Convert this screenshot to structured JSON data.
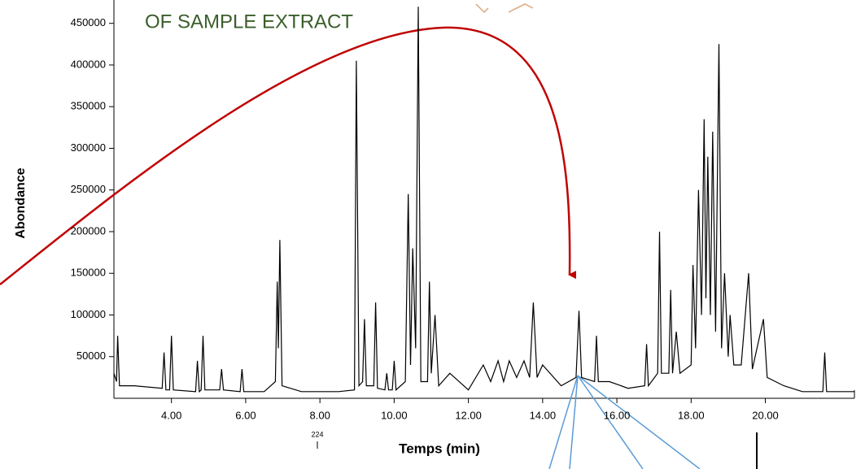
{
  "chart_data": {
    "type": "line",
    "title": "OF SAMPLE EXTRACT",
    "y_label": "Abondance",
    "x_label": "Temps (min)",
    "annotations": [
      "224"
    ],
    "color": "#000000",
    "x": [
      2.45,
      2.52,
      2.55,
      2.6,
      3.0,
      3.75,
      3.8,
      3.85,
      3.95,
      4.0,
      4.05,
      4.65,
      4.7,
      4.75,
      4.8,
      4.85,
      4.9,
      5.3,
      5.35,
      5.4,
      5.85,
      5.9,
      5.95,
      6.5,
      6.8,
      6.85,
      6.88,
      6.92,
      6.98,
      7.5,
      8.5,
      8.93,
      8.98,
      9.05,
      9.15,
      9.2,
      9.25,
      9.45,
      9.5,
      9.55,
      9.75,
      9.8,
      9.85,
      9.95,
      10.0,
      10.05,
      10.3,
      10.38,
      10.44,
      10.5,
      10.58,
      10.65,
      10.72,
      10.9,
      10.95,
      11.0,
      11.1,
      11.2,
      11.5,
      12.0,
      12.4,
      12.6,
      12.8,
      12.95,
      13.1,
      13.3,
      13.5,
      13.65,
      13.75,
      13.85,
      14.0,
      14.5,
      14.9,
      14.98,
      15.05,
      15.4,
      15.45,
      15.5,
      15.8,
      16.3,
      16.75,
      16.8,
      16.85,
      17.1,
      17.15,
      17.2,
      17.4,
      17.45,
      17.5,
      17.6,
      17.7,
      18.0,
      18.05,
      18.12,
      18.2,
      18.28,
      18.35,
      18.4,
      18.45,
      18.52,
      18.58,
      18.66,
      18.75,
      18.82,
      18.9,
      19.0,
      19.05,
      19.15,
      19.35,
      19.55,
      19.65,
      19.95,
      20.05,
      20.5,
      21.0,
      21.55,
      21.6,
      21.65,
      22.4
    ],
    "values": [
      30000,
      20000,
      75000,
      15000,
      15000,
      12000,
      55000,
      10000,
      10000,
      75000,
      10000,
      8000,
      45000,
      8000,
      10000,
      75000,
      10000,
      10000,
      35000,
      10000,
      8000,
      35000,
      8000,
      8000,
      20000,
      140000,
      60000,
      190000,
      15000,
      8000,
      8000,
      10000,
      405000,
      15000,
      20000,
      95000,
      15000,
      15000,
      115000,
      12000,
      10000,
      30000,
      10000,
      10000,
      45000,
      10000,
      20000,
      245000,
      40000,
      180000,
      60000,
      470000,
      20000,
      20000,
      140000,
      30000,
      100000,
      15000,
      30000,
      10000,
      40000,
      20000,
      45000,
      20000,
      45000,
      25000,
      45000,
      25000,
      115000,
      25000,
      40000,
      15000,
      25000,
      105000,
      25000,
      20000,
      75000,
      20000,
      20000,
      12000,
      15000,
      65000,
      15000,
      30000,
      200000,
      30000,
      30000,
      130000,
      30000,
      80000,
      30000,
      40000,
      160000,
      60000,
      250000,
      100000,
      335000,
      120000,
      290000,
      100000,
      320000,
      80000,
      425000,
      60000,
      150000,
      50000,
      100000,
      40000,
      40000,
      150000,
      35000,
      95000,
      25000,
      15000,
      8000,
      8000,
      55000,
      8000,
      8000
    ],
    "xlim": [
      2.45,
      22.4
    ],
    "ylim": [
      0,
      478000
    ],
    "xticks": [
      {
        "value": 4,
        "label": "4.00"
      },
      {
        "value": 6,
        "label": "6.00"
      },
      {
        "value": 8,
        "label": "8.00"
      },
      {
        "value": 10,
        "label": "10.00"
      },
      {
        "value": 12,
        "label": "12.00"
      },
      {
        "value": 14,
        "label": "14.00"
      },
      {
        "value": 16,
        "label": "16.00"
      },
      {
        "value": 18,
        "label": "18.00"
      },
      {
        "value": 20,
        "label": "20.00"
      }
    ],
    "yticks": [
      50000,
      100000,
      150000,
      200000,
      250000,
      300000,
      350000,
      400000,
      450000
    ]
  }
}
